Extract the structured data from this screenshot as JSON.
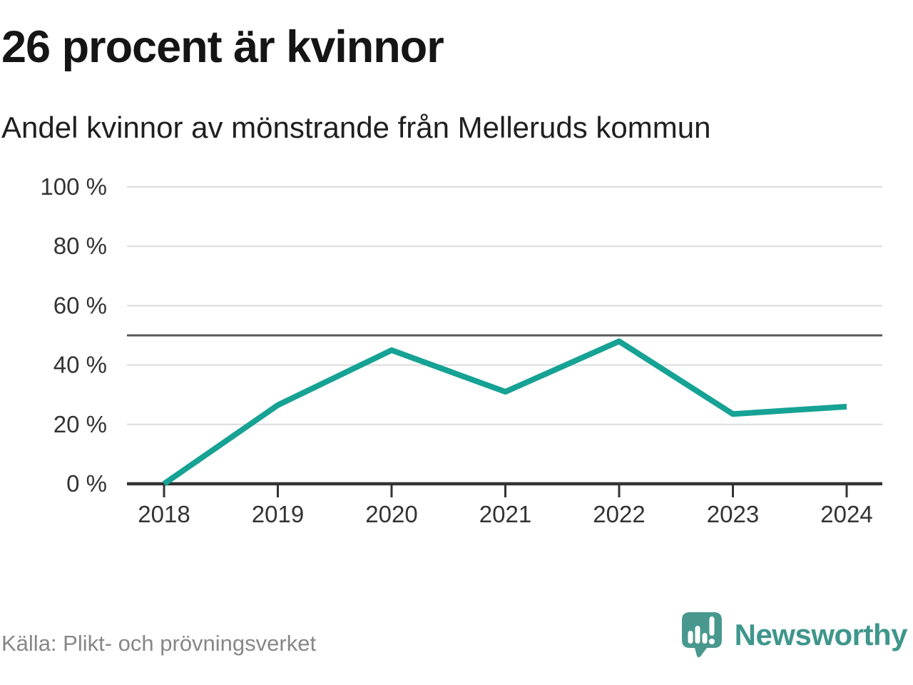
{
  "header": {
    "title": "26 procent är kvinnor",
    "subtitle": "Andel kvinnor av mönstrande från Melleruds kommun"
  },
  "chart_data": {
    "type": "line",
    "title": "26 procent är kvinnor",
    "subtitle": "Andel kvinnor av mönstrande från Melleruds kommun",
    "categories": [
      "2018",
      "2019",
      "2020",
      "2021",
      "2022",
      "2023",
      "2024"
    ],
    "series": [
      {
        "name": "Andel kvinnor av mönstrande",
        "values": [
          0,
          26.5,
          45,
          31,
          48,
          23.5,
          26
        ]
      }
    ],
    "xlabel": "",
    "ylabel": "",
    "ylim": [
      0,
      100
    ],
    "yticks": [
      0,
      20,
      40,
      60,
      80,
      100
    ],
    "ytick_labels": [
      "0 %",
      "20 %",
      "40 %",
      "60 %",
      "80 %",
      "100 %"
    ],
    "reference_line": 50,
    "grid": true,
    "legend": "none",
    "colors": {
      "line": "#16a294",
      "grid": "#dcdcdc",
      "axis": "#333333",
      "reference_line": "#58585a",
      "tick_text": "#333333"
    }
  },
  "footer": {
    "source": "Källa: Plikt- och prövningsverket",
    "brand": "Newsworthy",
    "brand_color": "#3e968c",
    "logo_icon": "speech-bubble-bar-chart-icon"
  }
}
